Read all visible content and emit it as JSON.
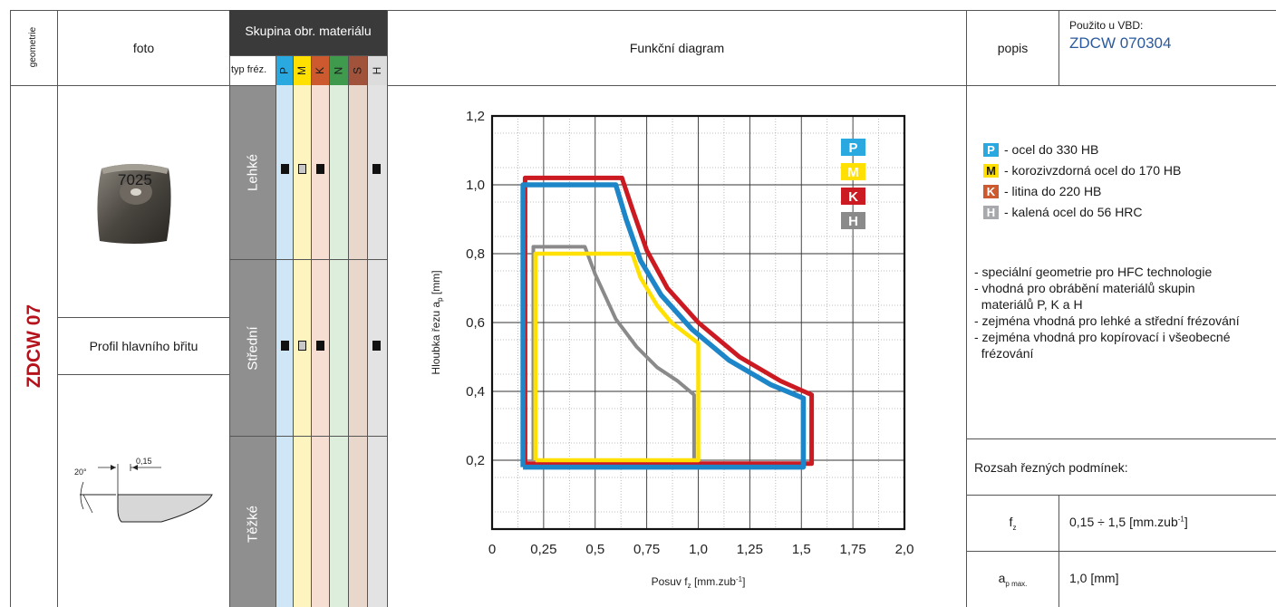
{
  "header": {
    "geometry": "geometrie",
    "photo": "foto",
    "material_group": "Skupina obr. materiálu",
    "milling_type": "typ fréz.",
    "mat_letters": [
      "P",
      "M",
      "K",
      "N",
      "S",
      "H"
    ],
    "diagram": "Funkční diagram",
    "description": "popis",
    "used_label": "Použito u VBD:",
    "used_value": "ZDCW 070304"
  },
  "geometry_name": "ZDCW 07",
  "photo_insert_text": "7025",
  "profile_label": "Profil hlavního břitu",
  "profile_drawing": {
    "angle": "20°",
    "dim": "0,15"
  },
  "milling_rows": [
    "Lehké",
    "Střední",
    "Těžké"
  ],
  "legend": [
    {
      "letter": "P",
      "text": "- ocel do 330 HB",
      "color": "#29a9e0"
    },
    {
      "letter": "M",
      "text": "- korozivzdorná ocel do 170 HB",
      "color": "#ffe000"
    },
    {
      "letter": "K",
      "text": "- litina do 220 HB",
      "color": "#cc5a2e"
    },
    {
      "letter": "H",
      "text": "- kalená ocel do 56 HRC",
      "color": "#a7a9ac"
    }
  ],
  "description_items": [
    "- speciální geometrie pro HFC technologie",
    "- vhodná pro obrábění materiálů skupin",
    "  materiálů P, K a H",
    "- zejména vhodná pro lehké a střední frézování",
    "- zejména vhodná pro kopírovací i všeobecné",
    "  frézování"
  ],
  "conditions": {
    "title": "Rozsah řezných podmínek:",
    "fz_label": "f",
    "fz_sub": "z",
    "fz_value": "0,15 ÷ 1,5 [mm.zub",
    "ap_label": "a",
    "ap_sub": "p max.",
    "ap_value": "1,0 [mm]"
  },
  "chart_data": {
    "type": "line",
    "xlabel": "Posuv f",
    "xlabel_sub": "z",
    "xlabel_unit": " [mm.zub",
    "ylabel": "Hloubka řezu a",
    "ylabel_sub": "p",
    "ylabel_unit": " [mm]",
    "xlim": [
      0,
      2.0
    ],
    "ylim": [
      0,
      1.2
    ],
    "xticks": [
      "0",
      "0,25",
      "0,5",
      "0,75",
      "1,0",
      "1,25",
      "1,5",
      "1,75",
      "2,0"
    ],
    "yticks": [
      "0,2",
      "0,4",
      "0,6",
      "0,8",
      "1,0",
      "1,2"
    ],
    "legend_badges": [
      {
        "letter": "P",
        "color": "#29a9e0"
      },
      {
        "letter": "M",
        "color": "#ffe000"
      },
      {
        "letter": "K",
        "color": "#cc1a22"
      },
      {
        "letter": "H",
        "color": "#8a8a8a"
      }
    ],
    "series": [
      {
        "name": "K",
        "color": "#cc1a22",
        "points": [
          [
            0.16,
            0.19
          ],
          [
            0.16,
            1.02
          ],
          [
            0.63,
            1.02
          ],
          [
            0.68,
            0.93
          ],
          [
            0.75,
            0.81
          ],
          [
            0.85,
            0.7
          ],
          [
            1.0,
            0.6
          ],
          [
            1.2,
            0.5
          ],
          [
            1.4,
            0.43
          ],
          [
            1.55,
            0.39
          ],
          [
            1.55,
            0.19
          ],
          [
            0.16,
            0.19
          ]
        ]
      },
      {
        "name": "P",
        "color": "#1d86c9",
        "points": [
          [
            0.15,
            0.18
          ],
          [
            0.15,
            1.0
          ],
          [
            0.6,
            1.0
          ],
          [
            0.65,
            0.9
          ],
          [
            0.72,
            0.78
          ],
          [
            0.82,
            0.68
          ],
          [
            0.97,
            0.58
          ],
          [
            1.15,
            0.49
          ],
          [
            1.35,
            0.42
          ],
          [
            1.51,
            0.38
          ],
          [
            1.51,
            0.18
          ],
          [
            0.15,
            0.18
          ]
        ]
      },
      {
        "name": "H",
        "color": "#8a8a8a",
        "points": [
          [
            0.2,
            0.2
          ],
          [
            0.2,
            0.82
          ],
          [
            0.45,
            0.82
          ],
          [
            0.5,
            0.74
          ],
          [
            0.6,
            0.61
          ],
          [
            0.7,
            0.53
          ],
          [
            0.8,
            0.47
          ],
          [
            0.9,
            0.43
          ],
          [
            0.98,
            0.39
          ],
          [
            0.98,
            0.2
          ]
        ]
      },
      {
        "name": "M",
        "color": "#ffe000",
        "points": [
          [
            0.21,
            0.2
          ],
          [
            0.21,
            0.8
          ],
          [
            0.68,
            0.8
          ],
          [
            0.72,
            0.73
          ],
          [
            0.8,
            0.65
          ],
          [
            0.87,
            0.6
          ],
          [
            1.0,
            0.54
          ],
          [
            1.0,
            0.2
          ],
          [
            0.21,
            0.2
          ]
        ]
      }
    ]
  }
}
